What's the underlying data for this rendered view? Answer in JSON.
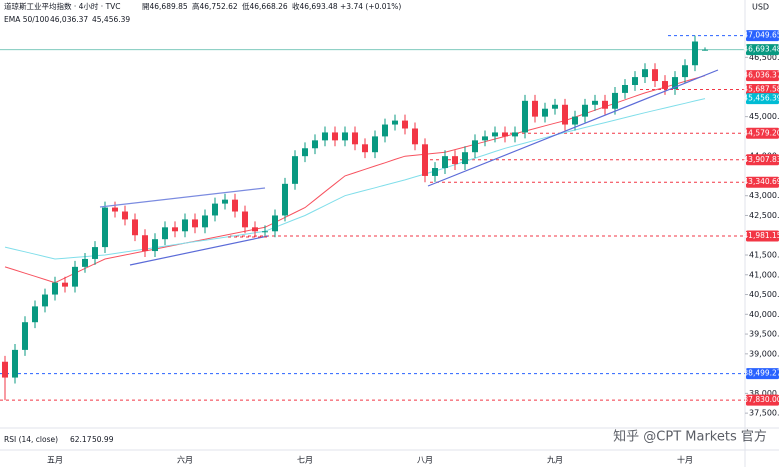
{
  "header": {
    "symbol": "道琼斯工业平均指数 · 4小时 · TVC",
    "ohlc": [
      "開46,689.85",
      "高46,752.62",
      "低46,668.26",
      "收46,693.48"
    ],
    "change": "+3.74 (+0.01%)",
    "currency": "USD"
  },
  "indicators": {
    "ema_label": "EMA 50/100",
    "ema_values": [
      "46,036.37",
      "45,456.39"
    ],
    "rsi_label": "RSI (14, close)",
    "rsi_values": [
      "62.17",
      "50.99"
    ]
  },
  "watermark": "知乎 @CPT Markets 官方",
  "chart_data": {
    "type": "candlestick",
    "categories": [
      null,
      null,
      null,
      null,
      null,
      "五月",
      null,
      null,
      null,
      null,
      null,
      null,
      null,
      null,
      null,
      null,
      null,
      null,
      "六月",
      null,
      null,
      null,
      null,
      null,
      null,
      null,
      null,
      null,
      null,
      null,
      "七月",
      null,
      null,
      null,
      null,
      null,
      null,
      null,
      null,
      null,
      null,
      null,
      "八月",
      null,
      null,
      null,
      null,
      null,
      null,
      null,
      null,
      null,
      null,
      null,
      null,
      "九月",
      null,
      null,
      null,
      null,
      null,
      null,
      null,
      null,
      null,
      null,
      null,
      null,
      "十月",
      null,
      null
    ],
    "open": [
      38800,
      38400,
      39100,
      39800,
      40200,
      40500,
      40800,
      40700,
      41200,
      41400,
      41700,
      42700,
      42600,
      42400,
      42000,
      41600,
      41900,
      42200,
      42100,
      42400,
      42200,
      42500,
      42800,
      42900,
      42600,
      42200,
      42100,
      42100,
      42500,
      43300,
      44000,
      44200,
      44400,
      44600,
      44400,
      44600,
      44300,
      44100,
      44500,
      44800,
      44900,
      44700,
      44300,
      43500,
      43700,
      44000,
      43800,
      44100,
      44400,
      44500,
      44600,
      44500,
      44600,
      45400,
      45000,
      45200,
      45300,
      44800,
      45000,
      45300,
      45400,
      45200,
      45600,
      45800,
      46000,
      46200,
      45900,
      45700,
      46000,
      46300,
      46689.85
    ],
    "high": [
      38950,
      39250,
      39950,
      40350,
      40650,
      40950,
      40950,
      41350,
      41550,
      41850,
      42850,
      42850,
      42750,
      42550,
      42150,
      42050,
      42350,
      42350,
      42550,
      42550,
      42650,
      42950,
      43050,
      43050,
      42750,
      42350,
      42250,
      42650,
      43450,
      44150,
      44350,
      44550,
      44750,
      44750,
      44750,
      44750,
      44450,
      44650,
      44950,
      45050,
      45050,
      44850,
      44450,
      43850,
      44150,
      44150,
      44250,
      44550,
      44650,
      44750,
      44750,
      44750,
      45550,
      45550,
      45350,
      45450,
      45450,
      45150,
      45450,
      45550,
      45550,
      45750,
      45950,
      46150,
      46350,
      46350,
      46050,
      46150,
      46450,
      47049.65,
      46752.62
    ],
    "low": [
      37830,
      38250,
      38950,
      39650,
      40050,
      40350,
      40550,
      40550,
      41050,
      41250,
      41550,
      42450,
      42250,
      41850,
      41450,
      41450,
      41750,
      41950,
      41950,
      42050,
      42050,
      42350,
      42650,
      42450,
      42050,
      41950,
      41950,
      41950,
      42350,
      43150,
      43850,
      44050,
      44250,
      44250,
      44250,
      44150,
      43950,
      43950,
      44350,
      44650,
      44550,
      44150,
      43340.69,
      43350,
      43550,
      43650,
      43650,
      43950,
      44250,
      44350,
      44350,
      44350,
      44450,
      44850,
      44850,
      45050,
      44650,
      44650,
      44850,
      45150,
      45050,
      45050,
      45450,
      45650,
      45850,
      45750,
      45550,
      45550,
      45850,
      46150,
      46668.26
    ],
    "close": [
      38400,
      39100,
      39800,
      40200,
      40500,
      40800,
      40700,
      41200,
      41400,
      41700,
      42700,
      42600,
      42400,
      42000,
      41600,
      41900,
      42200,
      42100,
      42400,
      42200,
      42500,
      42800,
      42900,
      42600,
      42200,
      42100,
      42100,
      42500,
      43300,
      44000,
      44200,
      44400,
      44600,
      44400,
      44600,
      44300,
      44100,
      44500,
      44800,
      44900,
      44700,
      44300,
      43500,
      43700,
      44000,
      43800,
      44100,
      44400,
      44500,
      44600,
      44500,
      44600,
      45400,
      45000,
      45200,
      45300,
      44800,
      45000,
      45300,
      45400,
      45200,
      45600,
      45800,
      46000,
      46200,
      45900,
      45700,
      46000,
      46300,
      46900,
      46693.48
    ],
    "up_color": "#089981",
    "down_color": "#f23645",
    "series": [
      {
        "color": "#f7525f",
        "values": [
          41200,
          41120,
          41040,
          40960,
          40880,
          40800,
          40920,
          41040,
          41160,
          41280,
          41400,
          41450,
          41500,
          41550,
          41600,
          41650,
          41700,
          41750,
          41800,
          41850,
          41900,
          41950,
          42000,
          42050,
          42100,
          42150,
          42200,
          42325,
          42450,
          42575,
          42700,
          42900,
          43100,
          43300,
          43500,
          43583,
          43667,
          43750,
          43833,
          43917,
          44000,
          44025,
          44050,
          44075,
          44100,
          44167,
          44233,
          44300,
          44367,
          44433,
          44500,
          44567,
          44633,
          44700,
          44767,
          44833,
          44900,
          44988,
          45075,
          45163,
          45250,
          45338,
          45425,
          45513,
          45600,
          45673,
          45745,
          45818,
          45891,
          45964,
          46036.37
        ]
      },
      {
        "color": "#80deea",
        "values": [
          41700,
          41640,
          41580,
          41520,
          41460,
          41400,
          41420,
          41440,
          41460,
          41480,
          41500,
          41538,
          41575,
          41613,
          41650,
          41688,
          41725,
          41763,
          41800,
          41838,
          41875,
          41913,
          41950,
          41988,
          42025,
          42063,
          42100,
          42200,
          42300,
          42400,
          42500,
          42625,
          42750,
          42875,
          43000,
          43067,
          43133,
          43200,
          43267,
          43333,
          43400,
          43475,
          43550,
          43625,
          43700,
          43783,
          43867,
          43950,
          44033,
          44117,
          44200,
          44267,
          44333,
          44400,
          44467,
          44533,
          44600,
          44663,
          44725,
          44788,
          44850,
          44913,
          44975,
          45038,
          45100,
          45159,
          45218,
          45278,
          45337,
          45397,
          45456.39
        ]
      }
    ],
    "ylim": [
      37200,
      47950
    ],
    "yticks": [
      {
        "value": 37500,
        "label": "37,500.00"
      },
      {
        "value": 38000,
        "label": "38,000.00"
      },
      {
        "value": 39000,
        "label": "39,000.00"
      },
      {
        "value": 39500,
        "label": "39,500.00"
      },
      {
        "value": 40000,
        "label": "40,000.00"
      },
      {
        "value": 40500,
        "label": "40,500.00"
      },
      {
        "value": 41000,
        "label": "41,000.00"
      },
      {
        "value": 41500,
        "label": "41,500.00"
      },
      {
        "value": 42500,
        "label": "42,500.00"
      },
      {
        "value": 43000,
        "label": "43,000.00"
      },
      {
        "value": 44000,
        "label": "44,000.00"
      },
      {
        "value": 45000,
        "label": "45,000.00"
      },
      {
        "value": 46500,
        "label": "46,500.00"
      }
    ],
    "levels": [
      {
        "value": 47049.65,
        "label": "47,049.65",
        "color": "#2962ff",
        "line": "dashed"
      },
      {
        "value": 46693.48,
        "label": "46,693.48",
        "color": "#089981",
        "line": "solid"
      },
      {
        "value": 46036.37,
        "label": "46,036.37",
        "color": "#f23645",
        "line": "none"
      },
      {
        "value": 45687.58,
        "label": "45,687.58",
        "color": "#f23645",
        "line": "dashed"
      },
      {
        "value": 45456.39,
        "label": "45,456.39",
        "color": "#00bcd4",
        "line": "none"
      },
      {
        "value": 44579.2,
        "label": "44,579.20",
        "color": "#f23645",
        "line": "dashed"
      },
      {
        "value": 43907.83,
        "label": "43,907.83",
        "color": "#f23645",
        "line": "dashed"
      },
      {
        "value": 43340.69,
        "label": "43,340.69",
        "color": "#f23645",
        "line": "dashed"
      },
      {
        "value": 41981.15,
        "label": "41,981.15",
        "color": "#f23645",
        "line": "dashed"
      },
      {
        "value": 38499.27,
        "label": "38,499.27",
        "color": "#2962ff",
        "line": "dashed"
      },
      {
        "value": 37830.0,
        "label": "37,830.00",
        "color": "#f23645",
        "line": "dashed"
      }
    ]
  }
}
